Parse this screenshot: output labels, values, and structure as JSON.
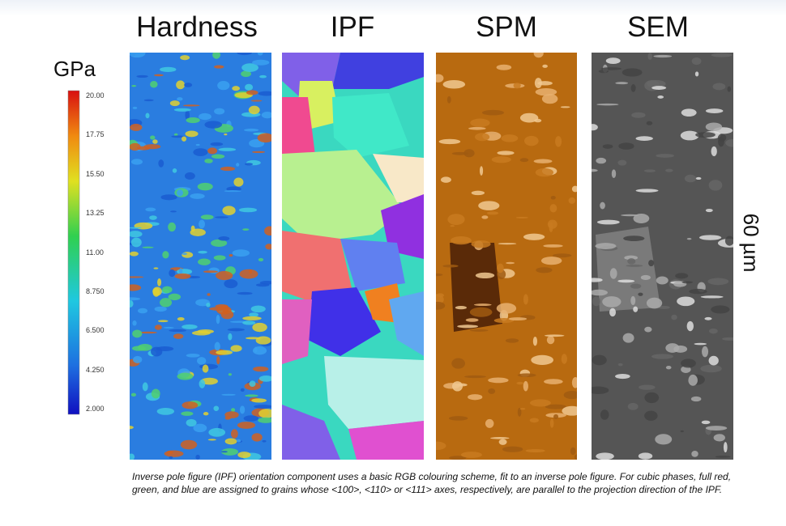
{
  "panels": {
    "titles": [
      "Hardness",
      "IPF",
      "SPM",
      "SEM"
    ]
  },
  "colorbar": {
    "unit": "GPa",
    "ticks": [
      "20.00",
      "17.75",
      "15.50",
      "13.25",
      "11.00",
      "8.750",
      "6.500",
      "4.250",
      "2.000"
    ]
  },
  "scale_bar": "60 µm",
  "caption": "Inverse pole figure (IPF) orientation component uses a basic RGB colouring scheme, fit to an inverse pole figure. For cubic phases, full red, green, and blue are assigned to grains whose <100>, <110> or <111> axes, respectively, are parallel to the projection direction of the IPF."
}
